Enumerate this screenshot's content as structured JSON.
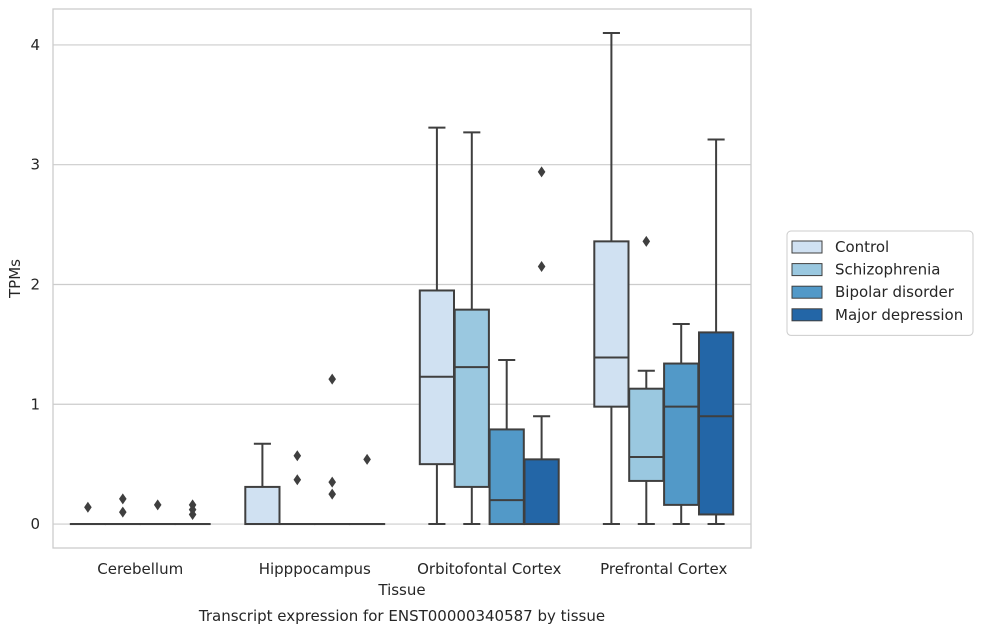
{
  "chart_data": {
    "type": "box",
    "title": "",
    "caption": "Transcript expression for ENST00000340587 by tissue",
    "xlabel": "Tissue",
    "ylabel": "TPMs",
    "ylim": [
      -0.2,
      4.3
    ],
    "yticks": [
      0,
      1,
      2,
      3,
      4
    ],
    "grid": true,
    "legend_position": "right",
    "categories": [
      "Cerebellum",
      "Hipppocampus",
      "Orbitofontal Cortex",
      "Prefrontal Cortex"
    ],
    "series": [
      {
        "name": "Control",
        "color": "#d0e1f2",
        "boxes": [
          {
            "category": "Cerebellum",
            "min": 0,
            "q1": 0,
            "median": 0,
            "q3": 0,
            "max": 0,
            "outliers": [
              0.14
            ]
          },
          {
            "category": "Hipppocampus",
            "min": 0,
            "q1": 0,
            "median": 0,
            "q3": 0.31,
            "max": 0.67,
            "outliers": []
          },
          {
            "category": "Orbitofontal Cortex",
            "min": 0,
            "q1": 0.5,
            "median": 1.23,
            "q3": 1.95,
            "max": 3.31,
            "outliers": []
          },
          {
            "category": "Prefrontal Cortex",
            "min": 0,
            "q1": 0.98,
            "median": 1.39,
            "q3": 2.36,
            "max": 4.1,
            "outliers": []
          }
        ]
      },
      {
        "name": "Schizophrenia",
        "color": "#9ac8e0",
        "boxes": [
          {
            "category": "Cerebellum",
            "min": 0,
            "q1": 0,
            "median": 0,
            "q3": 0,
            "max": 0,
            "outliers": [
              0.21,
              0.1
            ]
          },
          {
            "category": "Hipppocampus",
            "min": 0,
            "q1": 0,
            "median": 0,
            "q3": 0,
            "max": 0,
            "outliers": [
              0.57,
              0.37
            ]
          },
          {
            "category": "Orbitofontal Cortex",
            "min": 0,
            "q1": 0.31,
            "median": 1.31,
            "q3": 1.79,
            "max": 3.27,
            "outliers": []
          },
          {
            "category": "Prefrontal Cortex",
            "min": 0,
            "q1": 0.36,
            "median": 0.56,
            "q3": 1.13,
            "max": 1.28,
            "outliers": [
              2.36
            ]
          }
        ]
      },
      {
        "name": "Bipolar disorder",
        "color": "#5299c8",
        "boxes": [
          {
            "category": "Cerebellum",
            "min": 0,
            "q1": 0,
            "median": 0,
            "q3": 0,
            "max": 0,
            "outliers": [
              0.16
            ]
          },
          {
            "category": "Hipppocampus",
            "min": 0,
            "q1": 0,
            "median": 0,
            "q3": 0,
            "max": 0,
            "outliers": [
              1.21,
              0.35,
              0.25
            ]
          },
          {
            "category": "Orbitofontal Cortex",
            "min": 0,
            "q1": 0,
            "median": 0.2,
            "q3": 0.79,
            "max": 1.37,
            "outliers": []
          },
          {
            "category": "Prefrontal Cortex",
            "min": 0,
            "q1": 0.16,
            "median": 0.98,
            "q3": 1.34,
            "max": 1.67,
            "outliers": []
          }
        ]
      },
      {
        "name": "Major depression",
        "color": "#2366a7",
        "boxes": [
          {
            "category": "Cerebellum",
            "min": 0,
            "q1": 0,
            "median": 0,
            "q3": 0,
            "max": 0,
            "outliers": [
              0.16,
              0.12,
              0.08
            ]
          },
          {
            "category": "Hipppocampus",
            "min": 0,
            "q1": 0,
            "median": 0,
            "q3": 0,
            "max": 0,
            "outliers": [
              0.54
            ]
          },
          {
            "category": "Orbitofontal Cortex",
            "min": 0,
            "q1": 0,
            "median": 0,
            "q3": 0.54,
            "max": 0.9,
            "outliers": [
              2.94,
              2.15
            ]
          },
          {
            "category": "Prefrontal Cortex",
            "min": 0,
            "q1": 0.08,
            "median": 0.9,
            "q3": 1.6,
            "max": 3.21,
            "outliers": []
          }
        ]
      }
    ]
  }
}
